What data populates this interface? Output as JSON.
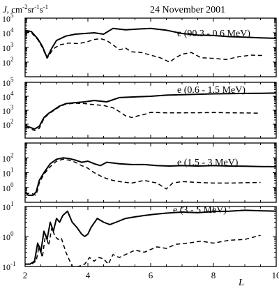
{
  "chart_data": {
    "type": "line",
    "title": "24 November 2001",
    "ylabel_prefix": "J",
    "ylabel_units": ", cm",
    "ylabel_exp1": "-2",
    "ylabel_mid": "sr",
    "ylabel_exp2": "-1",
    "ylabel_s": "s",
    "ylabel_exp3": "-1",
    "xlabel": "L",
    "xlim": [
      2,
      10
    ],
    "x_ticks": [
      2,
      4,
      6,
      8,
      10
    ],
    "x_tick_labels": [
      "2",
      "4",
      "6",
      "8",
      "10"
    ],
    "grid": false,
    "panels": [
      {
        "label": "e  (90.3 - 0.6 MeV)",
        "ylim_log": [
          1,
          5
        ],
        "y_ticks": [
          {
            "base": "10",
            "exp": "2",
            "value": 100
          },
          {
            "base": "10",
            "exp": "3",
            "value": 1000
          },
          {
            "base": "10",
            "exp": "4",
            "value": 10000
          },
          {
            "base": "10",
            "exp": "5",
            "value": 100000
          }
        ],
        "series": [
          {
            "style": "solid",
            "x": [
              2.0,
              2.2,
              2.4,
              2.55,
              2.7,
              2.85,
              3.0,
              3.3,
              3.6,
              3.9,
              4.2,
              4.5,
              4.8,
              5.2,
              5.6,
              6.0,
              6.5,
              7.0,
              7.5,
              8.0,
              8.5,
              9.0,
              9.5,
              10.0
            ],
            "y": [
              15000,
              12000,
              4000,
              1200,
              200,
              900,
              3000,
              6000,
              8000,
              9000,
              10000,
              8000,
              20000,
              16000,
              18000,
              20000,
              15000,
              9000,
              7000,
              6500,
              5500,
              5000,
              4500,
              4200
            ]
          },
          {
            "style": "dashed",
            "x": [
              2.0,
              2.2,
              2.4,
              2.55,
              2.7,
              2.9,
              3.1,
              3.4,
              3.7,
              4.0,
              4.2,
              4.4,
              4.6,
              4.8,
              5.0,
              5.2,
              5.4,
              5.7,
              6.0,
              6.3,
              6.6,
              6.8,
              7.0,
              7.3,
              7.6,
              8.0,
              8.4,
              8.8,
              9.2,
              9.6
            ],
            "y": [
              12000,
              10000,
              3500,
              1000,
              180,
              800,
              1500,
              2000,
              1800,
              2500,
              3500,
              4000,
              3000,
              1500,
              700,
              900,
              500,
              450,
              300,
              200,
              100,
              200,
              350,
              450,
              200,
              180,
              150,
              230,
              300,
              280
            ]
          }
        ]
      },
      {
        "label": "e  (0.6 - 1.5 MeV)",
        "ylim_log": [
          1,
          5
        ],
        "y_ticks": [
          {
            "base": "10",
            "exp": "2",
            "value": 100
          },
          {
            "base": "10",
            "exp": "3",
            "value": 1000
          },
          {
            "base": "10",
            "exp": "4",
            "value": 10000
          },
          {
            "base": "10",
            "exp": "5",
            "value": 100000
          }
        ],
        "series": [
          {
            "style": "solid",
            "x": [
              2.0,
              2.15,
              2.3,
              2.45,
              2.6,
              2.75,
              2.9,
              3.1,
              3.3,
              3.6,
              3.9,
              4.2,
              4.6,
              5.0,
              5.5,
              6.0,
              6.5,
              7.0,
              7.5,
              8.0,
              8.5,
              9.0,
              9.5,
              10.0
            ],
            "y": [
              80,
              60,
              45,
              70,
              300,
              600,
              1000,
              2000,
              3000,
              3500,
              4000,
              5000,
              4000,
              8000,
              9000,
              10000,
              12000,
              13000,
              14000,
              15000,
              15500,
              16000,
              16500,
              17000
            ]
          },
          {
            "style": "dashed",
            "x": [
              2.0,
              2.15,
              2.3,
              2.45,
              2.6,
              2.75,
              2.9,
              3.1,
              3.3,
              3.6,
              3.9,
              4.2,
              4.5,
              4.8,
              5.0,
              5.2,
              5.4,
              5.6,
              5.8,
              6.0,
              6.5,
              7.0,
              7.5,
              8.0,
              8.5,
              9.0,
              9.5
            ],
            "y": [
              60,
              50,
              35,
              50,
              250,
              550,
              900,
              1800,
              2800,
              3200,
              3000,
              2500,
              2200,
              1500,
              800,
              400,
              300,
              400,
              500,
              700,
              650,
              650,
              660,
              680,
              650,
              640,
              620
            ]
          }
        ]
      },
      {
        "label": "e  (1.5 - 3 MeV)",
        "ylim_log": [
          -1,
          3
        ],
        "y_ticks": [
          {
            "base": "10",
            "exp": "0",
            "value": 1
          },
          {
            "base": "10",
            "exp": "1",
            "value": 10
          },
          {
            "base": "10",
            "exp": "2",
            "value": 100
          }
        ],
        "series": [
          {
            "style": "solid",
            "x": [
              2.0,
              2.1,
              2.25,
              2.35,
              2.45,
              2.6,
              2.8,
              3.0,
              3.2,
              3.4,
              3.6,
              3.8,
              4.0,
              4.2,
              4.4,
              4.6,
              4.8,
              5.0,
              5.4,
              5.8,
              6.2,
              6.6,
              7.0,
              7.5,
              8.0,
              8.5,
              9.0,
              9.5,
              10.0
            ],
            "y": [
              0.5,
              0.3,
              0.3,
              0.5,
              3,
              10,
              40,
              80,
              100,
              90,
              70,
              50,
              60,
              40,
              30,
              50,
              45,
              40,
              35,
              35,
              30,
              28,
              30,
              28,
              30,
              28,
              27,
              26,
              25
            ]
          },
          {
            "style": "dashed",
            "x": [
              2.0,
              2.2,
              2.35,
              2.45,
              2.6,
              2.8,
              3.0,
              3.2,
              3.4,
              3.6,
              3.8,
              4.0,
              4.2,
              4.4,
              4.6,
              4.8,
              5.0,
              5.4,
              5.8,
              6.2,
              6.5,
              6.7,
              7.0,
              7.5,
              8.0,
              8.5,
              9.0,
              9.5
            ],
            "y": [
              0.4,
              0.4,
              0.3,
              2,
              8,
              25,
              60,
              80,
              70,
              50,
              30,
              20,
              10,
              6,
              4,
              3,
              2.5,
              2,
              3,
              2,
              0.8,
              2,
              2.5,
              2.2,
              2.0,
              2.0,
              2.1,
              2.2
            ]
          }
        ]
      },
      {
        "label": "e  (3 - 5 MeV)",
        "ylim_log": [
          -1,
          1
        ],
        "y_ticks": [
          {
            "base": "10",
            "exp": "-1",
            "value": 0.1
          },
          {
            "base": "10",
            "exp": "0",
            "value": 1
          },
          {
            "base": "10",
            "exp": "1",
            "value": 10
          }
        ],
        "series": [
          {
            "style": "solid",
            "x": [
              2.0,
              2.15,
              2.3,
              2.4,
              2.5,
              2.6,
              2.7,
              2.8,
              2.9,
              3.0,
              3.1,
              3.2,
              3.35,
              3.5,
              3.65,
              3.8,
              3.9,
              4.0,
              4.1,
              4.3,
              4.5,
              4.7,
              4.9,
              5.2,
              5.5,
              5.8,
              6.1,
              6.5,
              7.0,
              7.5,
              8.0,
              8.5,
              9.0,
              9.5,
              10.0
            ],
            "y": [
              0.12,
              0.12,
              0.15,
              0.6,
              0.3,
              1.5,
              0.8,
              3,
              1.5,
              4,
              3,
              5,
              7,
              3,
              2,
              1.2,
              1.0,
              1.2,
              2,
              4,
              3,
              2.5,
              3,
              4,
              4.5,
              5,
              5.5,
              6,
              6.5,
              6.2,
              6.8,
              7,
              7.5,
              7.2,
              7
            ]
          },
          {
            "style": "dashed",
            "x": [
              2.0,
              2.2,
              2.35,
              2.45,
              2.55,
              2.65,
              2.75,
              2.85,
              2.95,
              3.05,
              3.15,
              3.3,
              3.5,
              3.7,
              3.9,
              4.05,
              4.2,
              4.35,
              4.5,
              4.65,
              4.8,
              5.0,
              5.2,
              5.5,
              5.8,
              6.2,
              6.5,
              6.8,
              7.2,
              7.6,
              8.0,
              8.5,
              9.0,
              9.5
            ],
            "y": [
              0.12,
              0.12,
              0.15,
              0.5,
              0.2,
              1.2,
              0.5,
              2,
              1,
              0.8,
              0.9,
              0.3,
              0.1,
              0.1,
              0.12,
              0.2,
              0.15,
              0.2,
              0.18,
              0.12,
              0.25,
              0.2,
              0.25,
              0.35,
              0.3,
              0.45,
              0.4,
              0.55,
              0.6,
              0.7,
              0.6,
              0.75,
              0.8,
              1.1
            ]
          }
        ]
      }
    ]
  }
}
